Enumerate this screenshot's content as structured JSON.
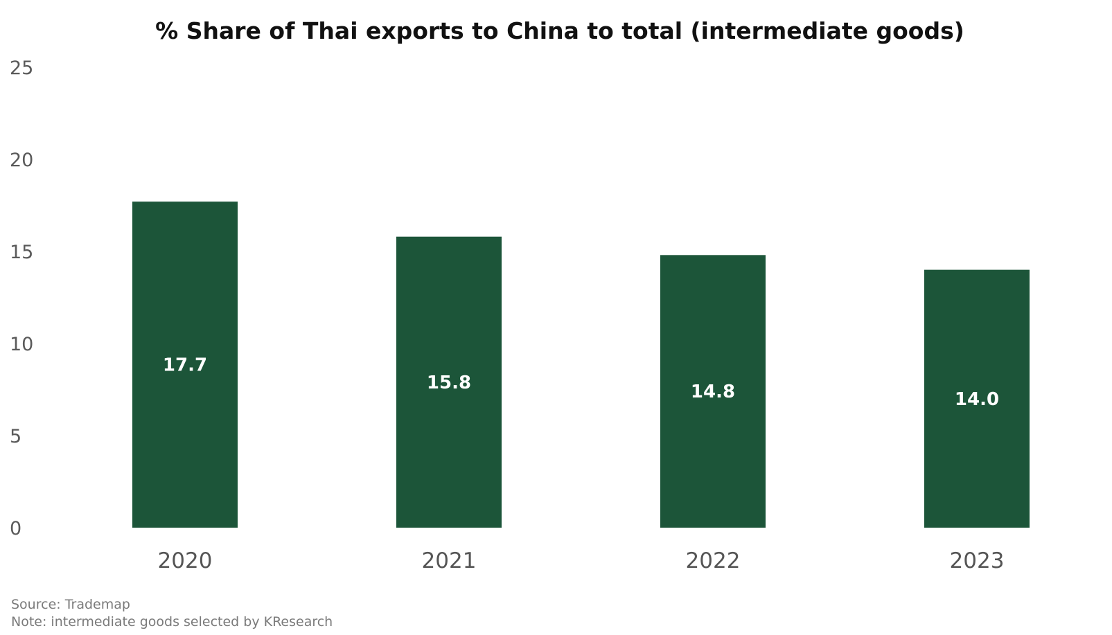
{
  "chart_data": {
    "type": "bar",
    "title": "% Share of Thai exports to China to total (intermediate goods)",
    "xlabel": "",
    "ylabel": "",
    "categories": [
      "2020",
      "2021",
      "2022",
      "2023"
    ],
    "values": [
      17.7,
      15.8,
      14.8,
      14.0
    ],
    "value_labels": [
      "17.7",
      "15.8",
      "14.8",
      "14.0"
    ],
    "ylim": [
      0,
      25
    ],
    "yticks": [
      0,
      5,
      10,
      15,
      20,
      25
    ],
    "grid": false,
    "legend": "none",
    "bar_color": "#1c5539"
  },
  "footer": {
    "source": "Source: Trademap",
    "note": "Note: intermediate goods selected by KResearch"
  }
}
